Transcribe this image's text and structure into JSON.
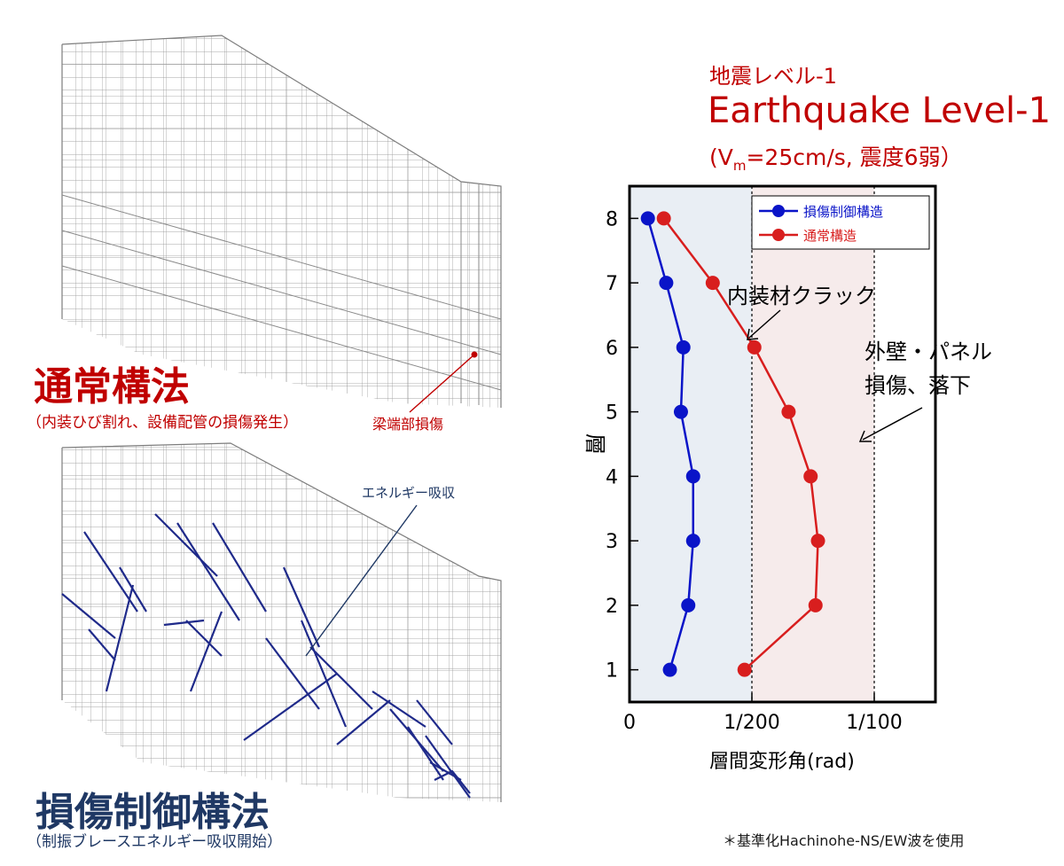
{
  "colors": {
    "red": "#c00000",
    "navy": "#1f3864",
    "brace": "#1f2a8a",
    "frame": "#9a9a9a",
    "seriesBlue": "#0a14c8",
    "seriesRed": "#d81e1e",
    "bandBlue": "#e9eef4",
    "bandPink": "#f6ebeb"
  },
  "left": {
    "normal": {
      "title": "通常構法",
      "subtitle": "（内装ひび割れ、設備配管の損傷発生）",
      "callout": "梁端部損傷"
    },
    "damage_control": {
      "title": "損傷制御構法",
      "subtitle": "（制振ブレースエネルギー吸収開始）",
      "callout": "エネルギー吸収"
    }
  },
  "header": {
    "line1": "地震レベル-1",
    "line2": "Earthquake Level-1",
    "line3_prefix": "(V",
    "line3_sub": "m",
    "line3_suffix": "=25cm/s, 震度6弱）"
  },
  "annotations": {
    "interior": "内装材クラック",
    "exterior_l1": "外壁・パネル",
    "exterior_l2": "損傷、落下"
  },
  "footnote": "＊基準化Hachinohe-NS/EW波を使用",
  "chart_data": {
    "type": "line",
    "xlabel": "層間変形角(rad)",
    "ylabel": "層",
    "xlim": [
      0,
      0.0125
    ],
    "ylim": [
      0.5,
      8.5
    ],
    "xticks": [
      {
        "value": 0,
        "label": "0"
      },
      {
        "value": 0.005,
        "label": "1/200"
      },
      {
        "value": 0.01,
        "label": "1/100"
      }
    ],
    "yticks": [
      1,
      2,
      3,
      4,
      5,
      6,
      7,
      8
    ],
    "bands": [
      {
        "from": 0,
        "to": 0.005,
        "color": "#e9eef4"
      },
      {
        "from": 0.005,
        "to": 0.01,
        "color": "#f6ebeb"
      }
    ],
    "reference_lines": [
      0.005,
      0.01
    ],
    "legend_position": "top-right",
    "series": [
      {
        "name": "損傷制御構造",
        "color": "#0a14c8",
        "x": [
          0.00165,
          0.0024,
          0.0026,
          0.0026,
          0.0021,
          0.0022,
          0.0015,
          0.00075
        ],
        "y": [
          1,
          2,
          3,
          4,
          5,
          6,
          7,
          8
        ]
      },
      {
        "name": "通常構造",
        "color": "#d81e1e",
        "x": [
          0.0047,
          0.0076,
          0.0077,
          0.0074,
          0.0065,
          0.0051,
          0.0034,
          0.0014
        ],
        "y": [
          1,
          2,
          3,
          4,
          5,
          6,
          7,
          8
        ]
      }
    ]
  }
}
